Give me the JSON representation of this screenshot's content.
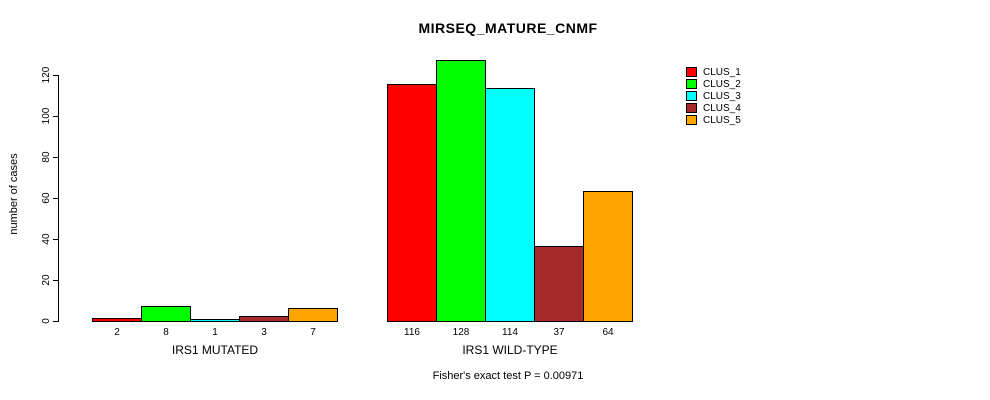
{
  "chart_data": {
    "type": "bar",
    "title": "MIRSEQ_MATURE_CNMF",
    "ylabel": "number of cases",
    "xlabel": "",
    "caption": "Fisher's exact test P = 0.00971",
    "categories": [
      "IRS1 MUTATED",
      "IRS1 WILD-TYPE"
    ],
    "series": [
      {
        "name": "CLUS_1",
        "color": "#FF0000",
        "values": [
          2,
          116
        ]
      },
      {
        "name": "CLUS_2",
        "color": "#00FF00",
        "values": [
          8,
          128
        ]
      },
      {
        "name": "CLUS_3",
        "color": "#00FFFF",
        "values": [
          1,
          114
        ]
      },
      {
        "name": "CLUS_4",
        "color": "#A52A2A",
        "values": [
          3,
          37
        ]
      },
      {
        "name": "CLUS_5",
        "color": "#FFA500",
        "values": [
          7,
          64
        ]
      }
    ],
    "bar_value_labels": [
      [
        "2",
        "8",
        "1",
        "3",
        "7"
      ],
      [
        "116",
        "128",
        "114",
        "37",
        "64"
      ]
    ],
    "y_ticks": [
      0,
      20,
      40,
      60,
      80,
      100,
      120
    ],
    "ylim": [
      0,
      128
    ],
    "legend_position": "top-right",
    "grid": false,
    "background_color": "#FFFFFF",
    "axis_color": "#000000"
  }
}
